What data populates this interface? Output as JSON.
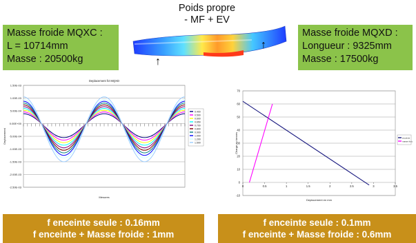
{
  "header": {
    "title_line1": "Poids propre",
    "title_line2": "- MF + EV"
  },
  "boxes": {
    "left": {
      "line1": "Masse froide MQXC :",
      "line2": "L = 10714mm",
      "line3": "Masse : 20500kg"
    },
    "right": {
      "line1": "Masse froide MQXD :",
      "line2": "Longueur : 9325mm",
      "line3": "Masse : 17500kg"
    }
  },
  "icons": {
    "arrow": "↑"
  },
  "footer": {
    "left": {
      "line1": "f enceinte seule : 0.16mm",
      "line2": "f enceinte + Masse froide : 1mm"
    },
    "right": {
      "line1": "f enceinte seule : 0.1mm",
      "line2": "f enceinte + Masse froide : 0.6mm"
    }
  },
  "colors": {
    "green": "#8bc34a",
    "gold": "#c8901a"
  },
  "chart_data": [
    {
      "type": "line",
      "title": "Deplacement fct MQXD",
      "xlabel": "Mesures",
      "ylabel": "Deplacement",
      "ylim": [
        -2.5,
        1.5
      ],
      "yticks": [
        "1.50E-03",
        "1.00E-03",
        "5.00E-04",
        "0.00E+00",
        "-5.00E-04",
        "-1.00E-03",
        "-1.50E-03",
        "-2.00E-03",
        "-2.50E-03"
      ],
      "grid": true,
      "legend_position": "right",
      "series": [
        {
          "name": "0.400",
          "color": "#000080",
          "amplitude": 0.55
        },
        {
          "name": "0.500",
          "color": "#ff00ff",
          "amplitude": 0.65
        },
        {
          "name": "0.600",
          "color": "#ffff00",
          "amplitude": 0.75
        },
        {
          "name": "0.650",
          "color": "#00ffff",
          "amplitude": 0.85
        },
        {
          "name": "0.700",
          "color": "#800080",
          "amplitude": 0.95
        },
        {
          "name": "0.800",
          "color": "#800000",
          "amplitude": 1.05
        },
        {
          "name": "0.900",
          "color": "#008080",
          "amplitude": 1.15
        },
        {
          "name": "1.000",
          "color": "#0000ff",
          "amplitude": 1.25
        },
        {
          "name": "1.200",
          "color": "#ccffff",
          "amplitude": 1.35
        },
        {
          "name": "1.500",
          "color": "#99ccff",
          "amplitude": 1.5
        }
      ]
    },
    {
      "type": "line",
      "title": "",
      "xlabel": "Deplacement en mm",
      "ylabel": "Charge en tonnes",
      "xlim": [
        0,
        3.5
      ],
      "ylim": [
        -10,
        70
      ],
      "xticks": [
        "0",
        "0.5",
        "1",
        "1.5",
        "2",
        "2.5",
        "3",
        "3.5"
      ],
      "yticks": [
        "70",
        "60",
        "50",
        "40",
        "30",
        "20",
        "10",
        "0",
        "-10"
      ],
      "grid": true,
      "legend_position": "right",
      "series": [
        {
          "name": "enceinte",
          "color": "#1a1a80",
          "x": [
            0,
            2.9
          ],
          "y": [
            62,
            -2
          ]
        },
        {
          "name": "masse froide",
          "color": "#ff00ff",
          "x": [
            0.15,
            0.68
          ],
          "y": [
            0,
            60
          ]
        }
      ]
    }
  ]
}
